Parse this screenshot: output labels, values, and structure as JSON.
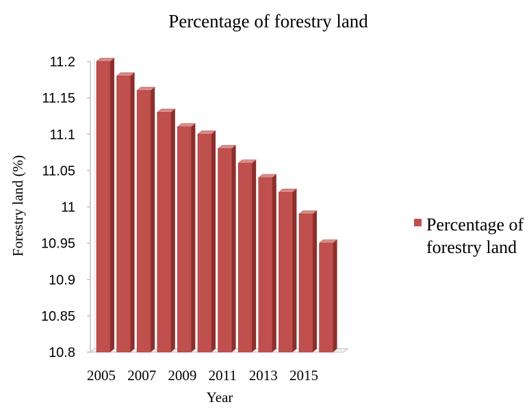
{
  "chart_data": {
    "type": "bar",
    "title": "Percentage of forestry land",
    "xlabel": "Year",
    "ylabel": "Forestry land (%)",
    "ylim": [
      10.8,
      11.2
    ],
    "yticks": [
      "10.8",
      "10.85",
      "10.9",
      "10.95",
      "11",
      "11.05",
      "11.1",
      "11.15",
      "11.2"
    ],
    "xtick_labels": [
      "2005",
      "2007",
      "2009",
      "2011",
      "2013",
      "2015"
    ],
    "categories": [
      "2005",
      "2006",
      "2007",
      "2008",
      "2009",
      "2010",
      "2011",
      "2012",
      "2013",
      "2014",
      "2015",
      "2016"
    ],
    "series": [
      {
        "name": "Percentage of forestry land",
        "values": [
          11.2,
          11.18,
          11.16,
          11.13,
          11.11,
          11.1,
          11.08,
          11.06,
          11.04,
          11.02,
          10.99,
          10.95
        ]
      }
    ],
    "legend": {
      "position": "right",
      "label_lines": [
        "Percentage of",
        "forestry land"
      ]
    },
    "style": "3d-bar",
    "bar_color": "#c0504d",
    "bar_side_color": "#8c2f2c",
    "bar_top_color": "#d98b88",
    "axis_color": "#bfbfbf",
    "grid": false
  }
}
